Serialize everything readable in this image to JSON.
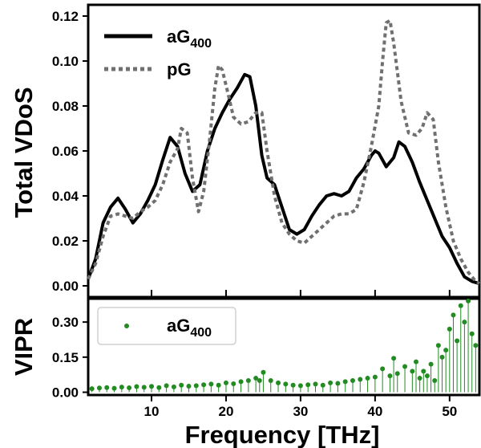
{
  "chart_data": [
    {
      "type": "line",
      "ylabel": "Total VDoS",
      "xlim": [
        1.5,
        54
      ],
      "ylim": [
        -0.005,
        0.125
      ],
      "yticks": [
        0.0,
        0.02,
        0.04,
        0.06,
        0.08,
        0.1,
        0.12
      ],
      "ytick_labels": [
        "0.00",
        "0.02",
        "0.04",
        "0.06",
        "0.08",
        "0.10",
        "0.12"
      ],
      "xticks": [
        10,
        20,
        30,
        40,
        50
      ],
      "legend": "top-left",
      "legend_items": [
        {
          "label_main": "aG",
          "label_sub": "400"
        },
        {
          "label_main": "pG",
          "label_sub": ""
        }
      ],
      "series": [
        {
          "name": "aG400",
          "style": "solid",
          "color": "#000000",
          "x": [
            1.5,
            2.5,
            3.5,
            4.5,
            5.5,
            6.5,
            7.5,
            8.5,
            9.5,
            10.5,
            11.5,
            12.5,
            13.5,
            14.5,
            15.5,
            16.5,
            17.5,
            18.5,
            19.5,
            20.5,
            21.5,
            22.5,
            23.2,
            24,
            24.8,
            25.5,
            26.5,
            27.5,
            28.5,
            29.5,
            30.5,
            31.5,
            32.5,
            33.5,
            34.5,
            35.5,
            36.5,
            37.5,
            38.5,
            39.5,
            40,
            40.5,
            41.5,
            42.5,
            43.2,
            44,
            45,
            46,
            47,
            48,
            49,
            50,
            51,
            52,
            53,
            54
          ],
          "y": [
            0.003,
            0.012,
            0.028,
            0.035,
            0.039,
            0.034,
            0.028,
            0.032,
            0.038,
            0.045,
            0.056,
            0.066,
            0.062,
            0.05,
            0.042,
            0.045,
            0.06,
            0.07,
            0.077,
            0.083,
            0.088,
            0.094,
            0.093,
            0.08,
            0.058,
            0.048,
            0.045,
            0.035,
            0.025,
            0.023,
            0.025,
            0.031,
            0.036,
            0.04,
            0.041,
            0.04,
            0.042,
            0.048,
            0.052,
            0.058,
            0.06,
            0.059,
            0.053,
            0.057,
            0.064,
            0.062,
            0.055,
            0.046,
            0.038,
            0.03,
            0.022,
            0.017,
            0.01,
            0.004,
            0.002,
            0.001
          ]
        },
        {
          "name": "pG",
          "style": "dotted",
          "color": "#707070",
          "x": [
            1.5,
            2.5,
            3.5,
            4.5,
            5.5,
            6.5,
            7.5,
            8.5,
            9.5,
            10.5,
            11.5,
            12.5,
            13.5,
            14,
            14.8,
            15.5,
            16.3,
            17,
            17.8,
            18.5,
            19,
            19.5,
            20.3,
            21,
            22,
            23,
            24,
            24.8,
            25.5,
            26.5,
            27.5,
            28.5,
            29.5,
            30.5,
            31.5,
            32.5,
            33.5,
            34.5,
            35.5,
            36.5,
            37.5,
            38.5,
            39.5,
            40.5,
            41,
            41.5,
            42,
            42.5,
            43.5,
            44.5,
            45.5,
            46.3,
            47,
            47.8,
            48.5,
            49.5,
            50.5,
            51.5,
            52.5,
            53.5,
            54
          ],
          "y": [
            0.003,
            0.01,
            0.022,
            0.031,
            0.032,
            0.031,
            0.03,
            0.033,
            0.035,
            0.038,
            0.045,
            0.055,
            0.061,
            0.07,
            0.068,
            0.048,
            0.033,
            0.042,
            0.065,
            0.088,
            0.098,
            0.096,
            0.085,
            0.075,
            0.072,
            0.073,
            0.077,
            0.077,
            0.06,
            0.04,
            0.028,
            0.023,
            0.02,
            0.019,
            0.022,
            0.025,
            0.028,
            0.031,
            0.032,
            0.032,
            0.034,
            0.046,
            0.062,
            0.08,
            0.1,
            0.117,
            0.118,
            0.108,
            0.082,
            0.068,
            0.067,
            0.07,
            0.077,
            0.074,
            0.055,
            0.035,
            0.02,
            0.012,
            0.006,
            0.002,
            0.001
          ]
        }
      ]
    },
    {
      "type": "scatter",
      "ylabel": "VIPR",
      "ylabel_color": "#228B22",
      "xlabel": "Frequency [THz]",
      "xlim": [
        1.5,
        54
      ],
      "ylim": [
        -0.005,
        0.4
      ],
      "yticks": [
        0.0,
        0.15,
        0.3
      ],
      "ytick_labels": [
        "0.00",
        "0.15",
        "0.30"
      ],
      "xticks": [
        10,
        20,
        30,
        40,
        50
      ],
      "xtick_labels": [
        "10",
        "20",
        "30",
        "40",
        "50"
      ],
      "legend": "top-left",
      "legend_items": [
        {
          "label_main": "aG",
          "label_sub": "400"
        }
      ],
      "series": [
        {
          "name": "aG400",
          "color": "#228B22",
          "x": [
            2,
            3,
            4,
            5,
            6,
            7,
            8,
            9,
            10,
            11,
            12,
            13,
            14,
            15,
            16,
            17,
            18,
            19,
            20,
            21,
            22,
            23,
            24,
            24.5,
            25,
            26,
            27,
            28,
            29,
            30,
            31,
            32,
            33,
            34,
            35,
            36,
            37,
            38,
            39,
            40,
            41,
            42,
            42.5,
            43,
            44,
            45,
            45.5,
            46,
            46.5,
            47,
            47.5,
            48,
            48.5,
            49,
            49.5,
            50,
            50.5,
            51,
            51.5,
            52,
            52.5,
            53,
            53.5
          ],
          "y": [
            0.015,
            0.018,
            0.02,
            0.017,
            0.022,
            0.019,
            0.024,
            0.021,
            0.025,
            0.02,
            0.028,
            0.023,
            0.03,
            0.026,
            0.028,
            0.032,
            0.035,
            0.03,
            0.04,
            0.036,
            0.045,
            0.05,
            0.06,
            0.05,
            0.085,
            0.05,
            0.04,
            0.035,
            0.03,
            0.028,
            0.032,
            0.035,
            0.03,
            0.04,
            0.038,
            0.045,
            0.05,
            0.055,
            0.06,
            0.065,
            0.1,
            0.07,
            0.145,
            0.08,
            0.11,
            0.09,
            0.13,
            0.06,
            0.09,
            0.07,
            0.12,
            0.05,
            0.2,
            0.15,
            0.18,
            0.27,
            0.33,
            0.22,
            0.37,
            0.3,
            0.39,
            0.25,
            0.2
          ]
        }
      ]
    }
  ]
}
